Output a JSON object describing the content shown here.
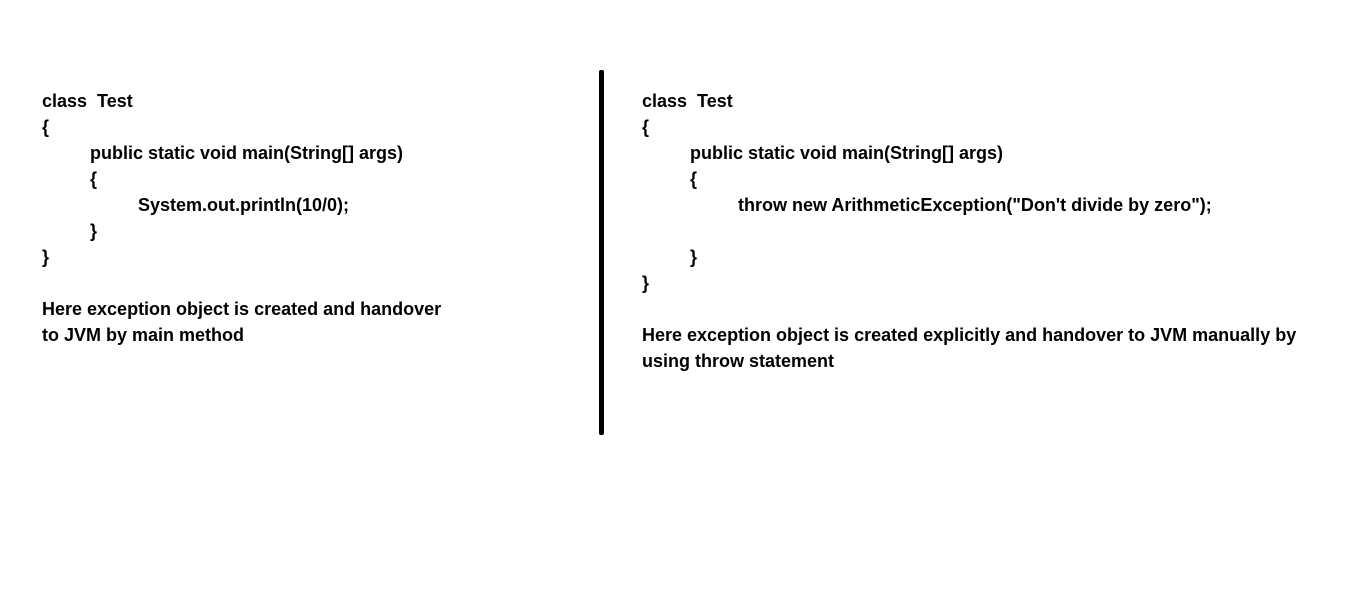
{
  "left": {
    "code": [
      "class  Test",
      "{",
      "public static void main(String[] args)",
      "{",
      "System.out.println(10/0);",
      "}",
      "}"
    ],
    "note": "Here exception object is created and handover to JVM by main method"
  },
  "right": {
    "code": [
      "class  Test",
      "{",
      "public static void main(String[] args)",
      "{",
      "throw new ArithmeticException(\"Don't divide by zero\");",
      "}",
      "}"
    ],
    "note": "Here exception object is created explicitly and handover to JVM manually by using throw statement"
  }
}
